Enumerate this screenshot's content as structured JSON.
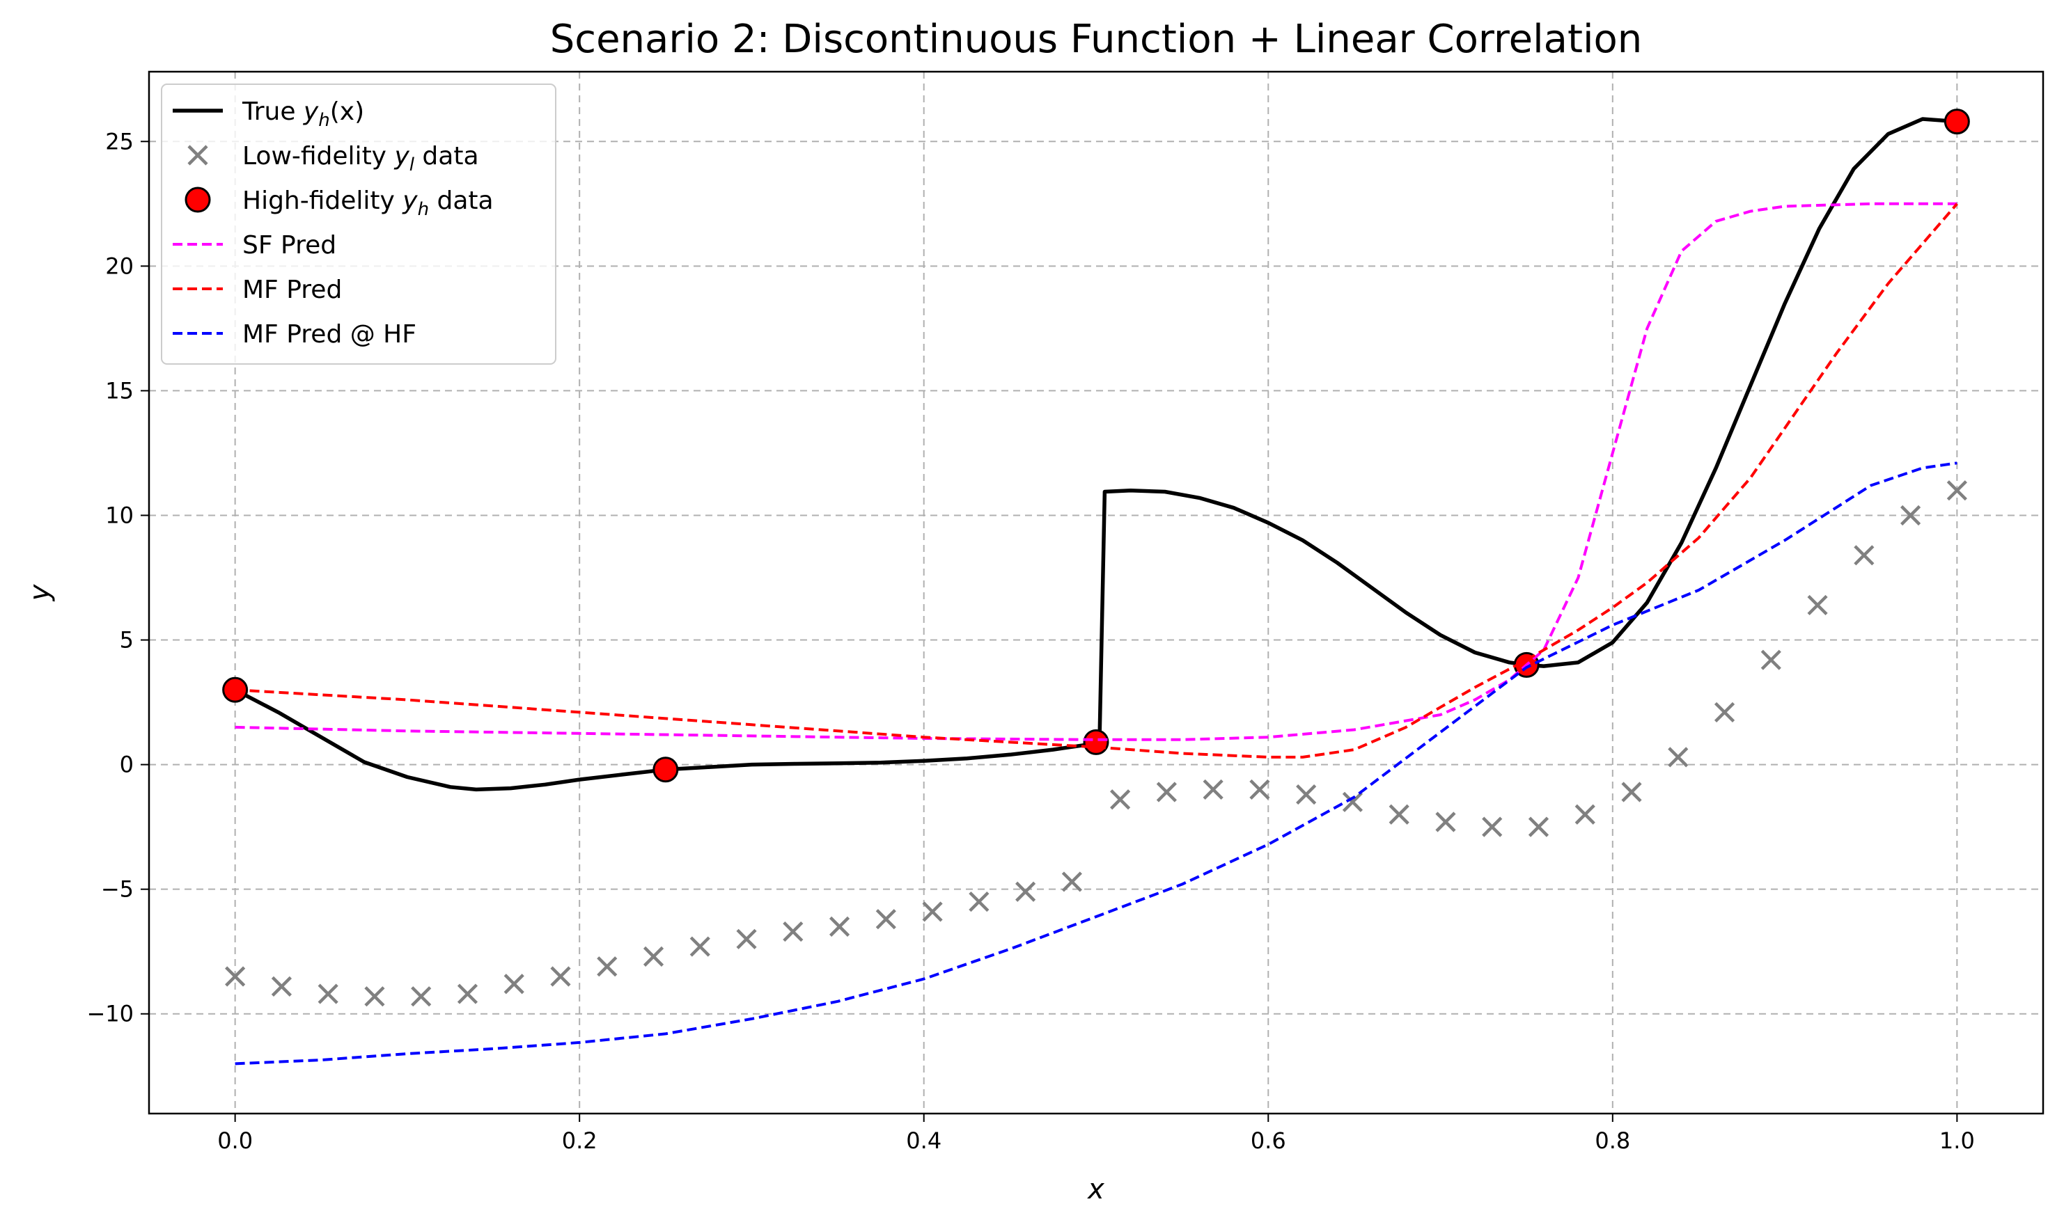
{
  "chart_data": {
    "type": "line",
    "title": "Scenario 2: Discontinuous Function + Linear Correlation",
    "xlabel": "x",
    "ylabel": "y",
    "xlim": [
      -0.05,
      1.05
    ],
    "ylim": [
      -14,
      27.8
    ],
    "xticks": [
      0.0,
      0.2,
      0.4,
      0.6,
      0.8,
      1.0
    ],
    "xtick_labels": [
      "0.0",
      "0.2",
      "0.4",
      "0.6",
      "0.8",
      "1.0"
    ],
    "yticks": [
      -10,
      -5,
      0,
      5,
      10,
      15,
      20,
      25
    ],
    "ytick_labels": [
      "−10",
      "−5",
      "0",
      "5",
      "10",
      "15",
      "20",
      "25"
    ],
    "grid": true,
    "legend_position": "upper-left",
    "series": [
      {
        "name": "True y_h(x)",
        "legend_label": "True y",
        "legend_sub": "h",
        "legend_suffix": "(x)",
        "kind": "line",
        "color": "#000000",
        "style": "solid",
        "x": [
          0.0,
          0.025,
          0.05,
          0.075,
          0.1,
          0.125,
          0.14,
          0.16,
          0.18,
          0.2,
          0.225,
          0.25,
          0.275,
          0.3,
          0.325,
          0.35,
          0.375,
          0.4,
          0.425,
          0.45,
          0.475,
          0.5,
          0.502,
          0.505,
          0.52,
          0.54,
          0.56,
          0.58,
          0.6,
          0.62,
          0.64,
          0.66,
          0.68,
          0.7,
          0.72,
          0.74,
          0.75,
          0.76,
          0.78,
          0.8,
          0.82,
          0.84,
          0.86,
          0.88,
          0.9,
          0.92,
          0.94,
          0.96,
          0.98,
          1.0
        ],
        "y": [
          3.0,
          2.1,
          1.1,
          0.1,
          -0.5,
          -0.9,
          -1.0,
          -0.95,
          -0.8,
          -0.6,
          -0.4,
          -0.2,
          -0.1,
          0.0,
          0.03,
          0.05,
          0.08,
          0.15,
          0.25,
          0.4,
          0.6,
          0.85,
          0.85,
          10.95,
          11.0,
          10.95,
          10.7,
          10.3,
          9.7,
          9.0,
          8.1,
          7.1,
          6.1,
          5.2,
          4.5,
          4.1,
          4.0,
          3.95,
          4.1,
          4.9,
          6.5,
          8.9,
          11.9,
          15.2,
          18.5,
          21.5,
          23.9,
          25.3,
          25.9,
          25.8
        ]
      },
      {
        "name": "Low-fidelity y_l data",
        "legend_label": "Low-fidelity y",
        "legend_sub": "l",
        "legend_suffix": " data",
        "kind": "scatter",
        "marker": "x",
        "color": "#808080",
        "x": [
          0.0,
          0.027,
          0.054,
          0.081,
          0.108,
          0.135,
          0.162,
          0.189,
          0.216,
          0.243,
          0.27,
          0.297,
          0.324,
          0.351,
          0.378,
          0.405,
          0.432,
          0.459,
          0.486,
          0.514,
          0.541,
          0.568,
          0.595,
          0.622,
          0.649,
          0.676,
          0.703,
          0.73,
          0.757,
          0.784,
          0.811,
          0.838,
          0.865,
          0.892,
          0.919,
          0.946,
          0.973,
          1.0
        ],
        "y": [
          -8.5,
          -8.9,
          -9.2,
          -9.3,
          -9.3,
          -9.2,
          -8.8,
          -8.5,
          -8.1,
          -7.7,
          -7.3,
          -7.0,
          -6.7,
          -6.5,
          -6.2,
          -5.9,
          -5.5,
          -5.1,
          -4.7,
          -1.4,
          -1.1,
          -1.0,
          -1.0,
          -1.2,
          -1.5,
          -2.0,
          -2.3,
          -2.5,
          -2.5,
          -2.0,
          -1.1,
          0.3,
          2.1,
          4.2,
          6.4,
          8.4,
          10.0,
          11.0
        ]
      },
      {
        "name": "High-fidelity y_h data",
        "legend_label": "High-fidelity y",
        "legend_sub": "h",
        "legend_suffix": " data",
        "kind": "scatter",
        "marker": "circle",
        "color": "#ff0000",
        "x": [
          0.0,
          0.25,
          0.5,
          0.75,
          1.0
        ],
        "y": [
          3.0,
          -0.2,
          0.9,
          4.0,
          25.8
        ]
      },
      {
        "name": "SF Pred",
        "legend_label": "SF Pred",
        "kind": "line",
        "color": "#ff00ff",
        "style": "dashed",
        "x": [
          0.0,
          0.1,
          0.2,
          0.3,
          0.4,
          0.5,
          0.55,
          0.6,
          0.65,
          0.7,
          0.72,
          0.74,
          0.76,
          0.78,
          0.8,
          0.82,
          0.84,
          0.86,
          0.88,
          0.9,
          0.95,
          1.0
        ],
        "y": [
          1.5,
          1.35,
          1.25,
          1.15,
          1.05,
          1.0,
          1.0,
          1.1,
          1.4,
          2.0,
          2.6,
          3.4,
          4.6,
          7.5,
          12.5,
          17.5,
          20.6,
          21.8,
          22.2,
          22.4,
          22.5,
          22.5
        ]
      },
      {
        "name": "MF Pred",
        "legend_label": "MF Pred",
        "kind": "line",
        "color": "#ff0000",
        "style": "dashed",
        "x": [
          0.0,
          0.1,
          0.2,
          0.3,
          0.4,
          0.5,
          0.55,
          0.6,
          0.62,
          0.65,
          0.68,
          0.7,
          0.72,
          0.75,
          0.78,
          0.8,
          0.82,
          0.85,
          0.88,
          0.9,
          0.93,
          0.96,
          1.0
        ],
        "y": [
          3.0,
          2.6,
          2.1,
          1.6,
          1.1,
          0.7,
          0.45,
          0.3,
          0.3,
          0.6,
          1.5,
          2.3,
          3.1,
          4.2,
          5.4,
          6.3,
          7.3,
          9.1,
          11.5,
          13.5,
          16.5,
          19.3,
          22.5
        ]
      },
      {
        "name": "MF Pred @ HF",
        "legend_label": "MF Pred @ HF",
        "kind": "line",
        "color": "#0000ff",
        "style": "dashed",
        "x": [
          0.0,
          0.05,
          0.1,
          0.15,
          0.2,
          0.25,
          0.3,
          0.35,
          0.4,
          0.45,
          0.5,
          0.55,
          0.6,
          0.65,
          0.7,
          0.75,
          0.8,
          0.85,
          0.9,
          0.95,
          0.98,
          1.0
        ],
        "y": [
          -12.0,
          -11.85,
          -11.6,
          -11.4,
          -11.15,
          -10.8,
          -10.2,
          -9.5,
          -8.6,
          -7.4,
          -6.1,
          -4.8,
          -3.2,
          -1.3,
          1.3,
          3.9,
          5.6,
          7.0,
          9.0,
          11.2,
          11.9,
          12.1
        ]
      }
    ]
  }
}
